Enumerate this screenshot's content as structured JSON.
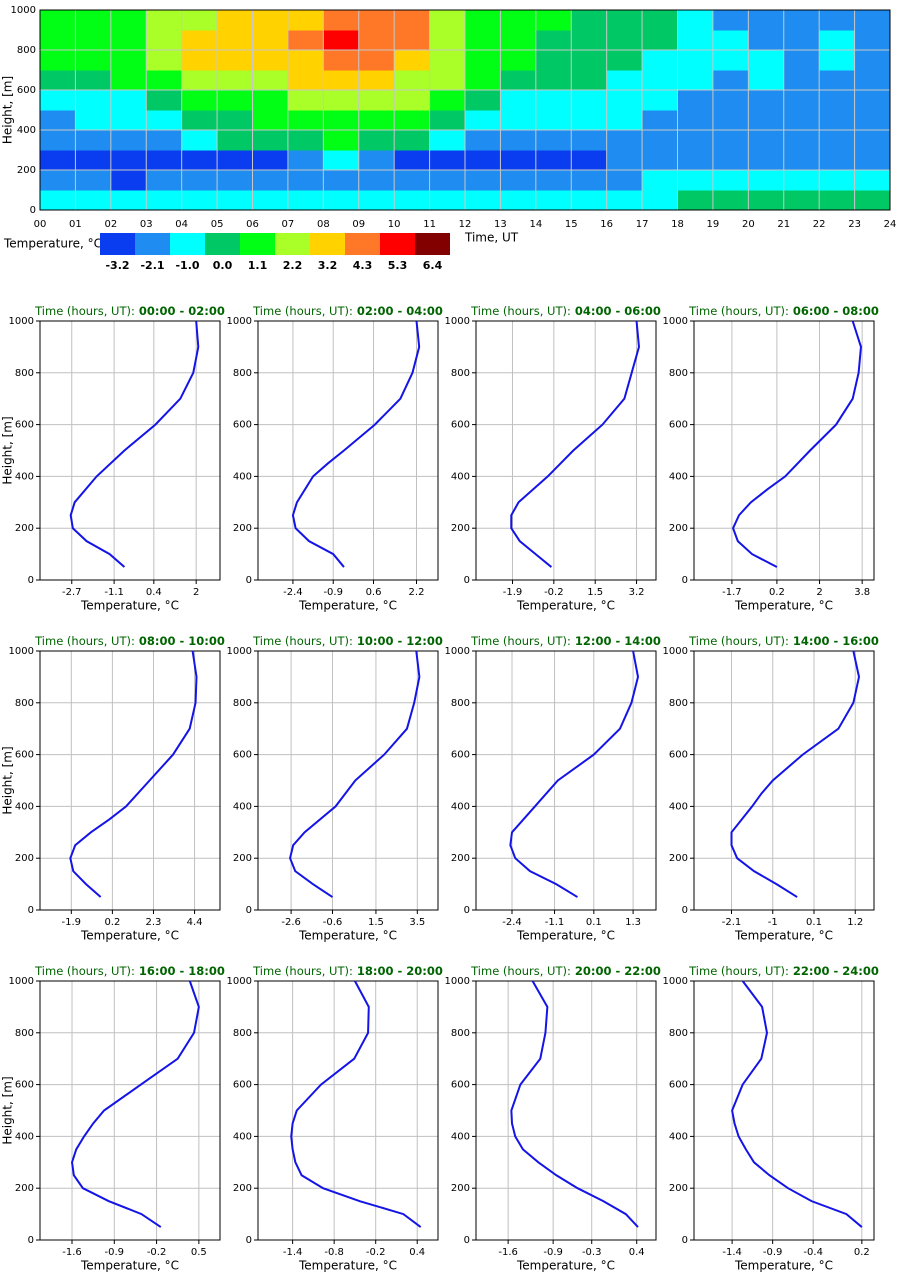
{
  "chart_data": [
    {
      "type": "heatmap",
      "ylabel": "Height, [m]",
      "xlabel": "Time, UT",
      "xlim": [
        0,
        24
      ],
      "ylim": [
        0,
        1000
      ],
      "xticks": [
        {
          "value": 0,
          "label": "00"
        },
        {
          "value": 1,
          "label": "01"
        },
        {
          "value": 2,
          "label": "02"
        },
        {
          "value": 3,
          "label": "03"
        },
        {
          "value": 4,
          "label": "04"
        },
        {
          "value": 5,
          "label": "05"
        },
        {
          "value": 6,
          "label": "06"
        },
        {
          "value": 7,
          "label": "07"
        },
        {
          "value": 8,
          "label": "08"
        },
        {
          "value": 9,
          "label": "09"
        },
        10,
        11,
        12,
        13,
        14,
        15,
        16,
        17,
        18,
        19,
        20,
        21,
        22,
        23,
        24
      ],
      "yticks": [
        0,
        200,
        400,
        600,
        800,
        1000
      ],
      "grid": true,
      "z": [
        [
          -1.0,
          -1.0,
          -1.0,
          -1.0,
          -1.0,
          -1.0,
          -1.0,
          -1.0,
          -1.0,
          -1.0,
          -1.0,
          -1.0,
          -1.0,
          -1.0,
          -1.0,
          -1.0,
          -1.0,
          -1.0,
          0.0,
          0.0,
          0.0,
          0.0,
          0.0,
          0.0
        ],
        [
          -2.1,
          -2.1,
          -3.2,
          -2.1,
          -2.1,
          -2.1,
          -2.1,
          -2.1,
          -2.1,
          -2.1,
          -2.1,
          -2.1,
          -2.1,
          -2.1,
          -2.1,
          -2.1,
          -2.1,
          -1.0,
          -1.0,
          -1.0,
          -1.0,
          -1.0,
          -1.0,
          -1.0
        ],
        [
          -3.2,
          -3.2,
          -3.2,
          -3.2,
          -3.2,
          -3.2,
          -3.2,
          -2.1,
          -1.0,
          -2.1,
          -3.2,
          -3.2,
          -3.2,
          -3.2,
          -3.2,
          -3.2,
          -2.1,
          -2.1,
          -2.1,
          -2.1,
          -2.1,
          -2.1,
          -2.1,
          -2.1
        ],
        [
          -2.1,
          -2.1,
          -2.1,
          -2.1,
          -1.0,
          0.0,
          0.0,
          0.0,
          1.1,
          0.0,
          0.0,
          -1.0,
          -2.1,
          -2.1,
          -2.1,
          -2.1,
          -2.1,
          -2.1,
          -2.1,
          -2.1,
          -2.1,
          -2.1,
          -2.1,
          -2.1
        ],
        [
          -2.1,
          -1.0,
          -1.0,
          -1.0,
          0.0,
          0.0,
          1.1,
          1.1,
          1.1,
          1.1,
          1.1,
          0.0,
          -1.0,
          -1.0,
          -1.0,
          -1.0,
          -1.0,
          -2.1,
          -2.1,
          -2.1,
          -2.1,
          -2.1,
          -2.1,
          -2.1
        ],
        [
          -1.0,
          -1.0,
          -1.0,
          0.0,
          1.1,
          1.1,
          1.1,
          2.2,
          2.2,
          2.2,
          2.2,
          1.1,
          0.0,
          -1.0,
          -1.0,
          -1.0,
          -1.0,
          -1.0,
          -2.1,
          -2.1,
          -2.1,
          -2.1,
          -2.1,
          -2.1
        ],
        [
          0.0,
          0.0,
          1.1,
          1.1,
          2.2,
          2.2,
          2.2,
          3.2,
          3.2,
          3.2,
          2.2,
          2.2,
          1.1,
          0.0,
          0.0,
          0.0,
          -1.0,
          -1.0,
          -1.0,
          -2.1,
          -1.0,
          -2.1,
          -2.1,
          -2.1
        ],
        [
          1.1,
          1.1,
          1.1,
          2.2,
          3.2,
          3.2,
          3.2,
          3.2,
          4.3,
          4.3,
          3.2,
          2.2,
          1.1,
          1.1,
          0.0,
          0.0,
          0.0,
          -1.0,
          -1.0,
          -1.0,
          -1.0,
          -2.1,
          -1.0,
          -2.1
        ],
        [
          1.1,
          1.1,
          1.1,
          2.2,
          3.2,
          3.2,
          3.2,
          4.3,
          5.3,
          4.3,
          4.3,
          2.2,
          1.1,
          1.1,
          0.0,
          0.0,
          0.0,
          0.0,
          -1.0,
          -1.0,
          -2.1,
          -2.1,
          -1.0,
          -2.1
        ],
        [
          1.1,
          1.1,
          1.1,
          2.2,
          2.2,
          3.2,
          3.2,
          3.2,
          4.3,
          4.3,
          4.3,
          2.2,
          1.1,
          1.1,
          1.1,
          0.0,
          0.0,
          0.0,
          -1.0,
          -2.1,
          -2.1,
          -2.1,
          -2.1,
          -2.1
        ]
      ],
      "colorbar": {
        "title": "Temperature, °C",
        "levels": [
          -3.2,
          -2.1,
          {
            "value": -1,
            "label": "-1.0"
          },
          {
            "value": 0,
            "label": "0.0"
          },
          1.1,
          2.2,
          3.2,
          4.3,
          5.3,
          6.4
        ],
        "colors": [
          "#0a3cf0",
          "#1e8cf0",
          "#00ffff",
          "#00c864",
          "#00ff14",
          "#aaff28",
          "#ffd200",
          "#ff7828",
          "#ff0000",
          "#820000"
        ]
      }
    },
    {
      "type": "line",
      "title": "Time (hours, UT):",
      "subtitle": "00:00 - 02:00",
      "xlabel": "Temperature, °C",
      "ylabel": "Height, [m]",
      "color": "#1414e6",
      "grid": true,
      "x": [
        -0.71,
        -1.27,
        -2.14,
        -2.66,
        -2.74,
        -2.59,
        -1.76,
        -0.71,
        0.46,
        1.4,
        1.89,
        2.08,
        2.0
      ],
      "y": [
        50,
        100,
        150,
        200,
        250,
        300,
        400,
        500,
        600,
        700,
        800,
        900,
        1000
      ],
      "xlim": [
        -3.9,
        2.9
      ],
      "ylim": [
        0,
        1000
      ],
      "xticks": [
        -2.7,
        -1.1,
        0.4,
        2.0
      ],
      "yticks": [
        0,
        200,
        400,
        600,
        800,
        1000
      ]
    },
    {
      "type": "line",
      "title": "Time (hours, UT):",
      "subtitle": "02:00 - 04:00",
      "xlabel": "Temperature, °C",
      "color": "#1414e6",
      "grid": true,
      "x": [
        -0.5,
        -0.9,
        -1.8,
        -2.3,
        -2.4,
        -2.25,
        -1.65,
        -1.1,
        -0.5,
        0.65,
        1.6,
        2.05,
        2.3,
        2.2
      ],
      "y": [
        50,
        100,
        150,
        200,
        250,
        300,
        400,
        450,
        500,
        600,
        700,
        800,
        900,
        1000
      ],
      "xlim": [
        -3.7,
        3.0
      ],
      "ylim": [
        0,
        1000
      ],
      "xticks": [
        -2.4,
        -0.9,
        0.6,
        2.2
      ],
      "yticks": [
        0,
        200,
        400,
        600,
        800,
        1000
      ]
    },
    {
      "type": "line",
      "title": "Time (hours, UT):",
      "subtitle": "04:00 - 06:00",
      "xlabel": "Temperature, °C",
      "color": "#1414e6",
      "grid": true,
      "x": [
        -0.3,
        -0.95,
        -1.6,
        -1.95,
        -1.95,
        -1.65,
        -0.45,
        0.6,
        1.8,
        2.7,
        3.0,
        3.3,
        3.2
      ],
      "y": [
        50,
        100,
        150,
        200,
        250,
        300,
        400,
        500,
        600,
        700,
        800,
        900,
        1000
      ],
      "xlim": [
        -3.4,
        4.0
      ],
      "ylim": [
        0,
        1000
      ],
      "xticks": [
        -1.9,
        -0.2,
        1.5,
        3.2
      ],
      "yticks": [
        0,
        200,
        400,
        600,
        800,
        1000
      ]
    },
    {
      "type": "line",
      "title": "Time (hours, UT):",
      "subtitle": "06:00 - 08:00",
      "xlabel": "Temperature, °C",
      "color": "#1414e6",
      "grid": true,
      "x": [
        0.2,
        -0.85,
        -1.45,
        -1.65,
        -1.4,
        -0.9,
        -0.2,
        0.55,
        1.6,
        2.7,
        3.4,
        3.65,
        3.75,
        3.4
      ],
      "y": [
        50,
        100,
        150,
        200,
        250,
        300,
        350,
        400,
        500,
        600,
        700,
        800,
        900,
        1000
      ],
      "xlim": [
        -3.3,
        4.3
      ],
      "ylim": [
        0,
        1000
      ],
      "xticks": [
        -1.7,
        0.2,
        2.0,
        3.8
      ],
      "yticks": [
        0,
        200,
        400,
        600,
        800,
        1000
      ]
    },
    {
      "type": "line",
      "title": "Time (hours, UT):",
      "subtitle": "08:00 - 10:00",
      "xlabel": "Temperature, °C",
      "ylabel": "Height, [m]",
      "color": "#1414e6",
      "grid": true,
      "x": [
        -0.4,
        -1.15,
        -1.8,
        -1.95,
        -1.7,
        -0.9,
        0.05,
        0.9,
        2.1,
        3.3,
        4.15,
        4.45,
        4.5,
        4.3
      ],
      "y": [
        50,
        100,
        150,
        200,
        250,
        300,
        350,
        400,
        500,
        600,
        700,
        800,
        900,
        1000
      ],
      "xlim": [
        -3.5,
        5.7
      ],
      "ylim": [
        0,
        1000
      ],
      "xticks": [
        -1.9,
        0.2,
        2.3,
        4.4
      ],
      "yticks": [
        0,
        200,
        400,
        600,
        800,
        1000
      ]
    },
    {
      "type": "line",
      "title": "Time (hours, UT):",
      "subtitle": "10:00 - 12:00",
      "xlabel": "Temperature, °C",
      "color": "#1414e6",
      "grid": true,
      "x": [
        -0.6,
        -1.55,
        -2.4,
        -2.65,
        -2.5,
        -1.95,
        -0.45,
        0.5,
        1.9,
        3.0,
        3.35,
        3.6,
        3.45
      ],
      "y": [
        50,
        100,
        150,
        200,
        250,
        300,
        400,
        500,
        600,
        700,
        800,
        900,
        1000
      ],
      "xlim": [
        -4.2,
        4.5
      ],
      "ylim": [
        0,
        1000
      ],
      "xticks": [
        -2.6,
        -0.6,
        1.5,
        3.5
      ],
      "yticks": [
        0,
        200,
        400,
        600,
        800,
        1000
      ]
    },
    {
      "type": "line",
      "title": "Time (hours, UT):",
      "subtitle": "12:00 - 14:00",
      "xlabel": "Temperature, °C",
      "color": "#1414e6",
      "grid": true,
      "x": [
        -0.4,
        -1.05,
        -1.85,
        -2.3,
        -2.45,
        -2.4,
        -1.7,
        -1.0,
        0.1,
        0.9,
        1.25,
        1.45,
        1.3
      ],
      "y": [
        50,
        100,
        150,
        200,
        250,
        300,
        400,
        500,
        600,
        700,
        800,
        900,
        1000
      ],
      "xlim": [
        -3.5,
        2.0
      ],
      "ylim": [
        0,
        1000
      ],
      "xticks": [
        -2.4,
        -1.1,
        0.1,
        1.3
      ],
      "yticks": [
        0,
        200,
        400,
        600,
        800,
        1000
      ]
    },
    {
      "type": "line",
      "title": "Time (hours, UT):",
      "subtitle": "14:00 - 16:00",
      "xlabel": "Temperature, °C",
      "color": "#1414e6",
      "grid": true,
      "x": [
        -0.35,
        -0.9,
        -1.5,
        -1.95,
        -2.1,
        -2.1,
        -1.55,
        -1.3,
        -1.0,
        -0.2,
        0.75,
        1.15,
        1.3,
        1.15
      ],
      "y": [
        50,
        100,
        150,
        200,
        250,
        300,
        400,
        450,
        500,
        600,
        700,
        800,
        900,
        1000
      ],
      "xlim": [
        -3.1,
        1.7
      ],
      "ylim": [
        0,
        1000
      ],
      "xticks": [
        -2.1,
        -1.0,
        0.1,
        1.2
      ],
      "yticks": [
        0,
        200,
        400,
        600,
        800,
        1000
      ]
    },
    {
      "type": "line",
      "title": "Time (hours, UT):",
      "subtitle": "16:00 - 18:00",
      "xlabel": "Temperature, °C",
      "ylabel": "Height, [m]",
      "color": "#1414e6",
      "grid": true,
      "x": [
        -0.13,
        -0.45,
        -0.99,
        -1.42,
        -1.57,
        -1.6,
        -1.53,
        -1.4,
        -1.25,
        -1.07,
        -0.46,
        0.15,
        0.42,
        0.5,
        0.35
      ],
      "y": [
        50,
        100,
        150,
        200,
        250,
        300,
        350,
        400,
        450,
        500,
        600,
        700,
        800,
        900,
        1000
      ],
      "xlim": [
        -2.13,
        0.85
      ],
      "ylim": [
        0,
        1000
      ],
      "xticks": [
        -1.6,
        -0.9,
        -0.2,
        0.5
      ],
      "yticks": [
        0,
        200,
        400,
        600,
        800,
        1000
      ]
    },
    {
      "type": "line",
      "title": "Time (hours, UT):",
      "subtitle": "18:00 - 20:00",
      "xlabel": "Temperature, °C",
      "color": "#1414e6",
      "grid": true,
      "x": [
        0.45,
        0.2,
        -0.43,
        -0.96,
        -1.27,
        -1.36,
        -1.4,
        -1.42,
        -1.4,
        -1.34,
        -0.99,
        -0.51,
        -0.31,
        -0.3,
        -0.5
      ],
      "y": [
        50,
        100,
        150,
        200,
        250,
        300,
        350,
        400,
        450,
        500,
        600,
        700,
        800,
        900,
        1000
      ],
      "xlim": [
        -1.9,
        0.7
      ],
      "ylim": [
        0,
        1000
      ],
      "xticks": [
        -1.4,
        -0.8,
        -0.2,
        0.4
      ],
      "yticks": [
        0,
        200,
        400,
        600,
        800,
        1000
      ]
    },
    {
      "type": "line",
      "title": "Time (hours, UT):",
      "subtitle": "20:00 - 22:00",
      "xlabel": "Temperature, °C",
      "color": "#1414e6",
      "grid": true,
      "x": [
        0.42,
        0.23,
        -0.12,
        -0.52,
        -0.85,
        -1.13,
        -1.37,
        -1.49,
        -1.54,
        -1.55,
        -1.41,
        -1.1,
        -1.02,
        -0.99,
        -1.22
      ],
      "y": [
        50,
        100,
        150,
        200,
        250,
        300,
        350,
        400,
        450,
        500,
        600,
        700,
        800,
        900,
        1000
      ],
      "xlim": [
        -2.1,
        0.7
      ],
      "ylim": [
        0,
        1000
      ],
      "xticks": [
        -1.6,
        -0.9,
        -0.3,
        0.4
      ],
      "yticks": [
        0,
        200,
        400,
        600,
        800,
        1000
      ]
    },
    {
      "type": "line",
      "title": "Time (hours, UT):",
      "subtitle": "22:00 - 24:00",
      "xlabel": "Temperature, °C",
      "color": "#1414e6",
      "grid": true,
      "x": [
        0.2,
        0.01,
        -0.42,
        -0.71,
        -0.94,
        -1.13,
        -1.23,
        -1.32,
        -1.37,
        -1.4,
        -1.27,
        -1.04,
        -0.97,
        -1.03,
        -1.27
      ],
      "y": [
        50,
        100,
        150,
        200,
        250,
        300,
        350,
        400,
        450,
        500,
        600,
        700,
        800,
        900,
        1000
      ],
      "xlim": [
        -1.87,
        0.35
      ],
      "ylim": [
        0,
        1000
      ],
      "xticks": [
        -1.4,
        -0.9,
        -0.4,
        0.2
      ],
      "yticks": [
        0,
        200,
        400,
        600,
        800,
        1000
      ]
    }
  ]
}
